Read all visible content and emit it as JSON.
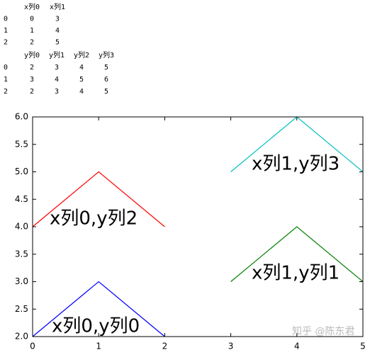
{
  "tables": [
    {
      "header": [
        "x列0",
        "x列1"
      ],
      "index": [
        0,
        1,
        2
      ],
      "rows": [
        [
          0,
          3
        ],
        [
          1,
          4
        ],
        [
          2,
          5
        ]
      ]
    },
    {
      "header": [
        "y列0",
        "y列1",
        "y列2",
        "y列3"
      ],
      "index": [
        0,
        1,
        2
      ],
      "rows": [
        [
          2,
          3,
          4,
          5
        ],
        [
          3,
          4,
          5,
          6
        ],
        [
          2,
          3,
          4,
          5
        ]
      ]
    }
  ],
  "chart_data": {
    "type": "line",
    "series": [
      {
        "color": "#0000ff",
        "x": [
          0,
          1,
          2
        ],
        "values": [
          2,
          3,
          2
        ],
        "annotation": "x列0,y列0"
      },
      {
        "color": "#ff0000",
        "x": [
          0,
          1,
          2
        ],
        "values": [
          4,
          5,
          4
        ],
        "annotation": "x列0,y列2"
      },
      {
        "color": "#008000",
        "x": [
          3,
          4,
          5
        ],
        "values": [
          3,
          4,
          3
        ],
        "annotation": "x列1,y列1"
      },
      {
        "color": "#00bfbf",
        "x": [
          3,
          4,
          5
        ],
        "values": [
          5,
          6,
          5
        ],
        "annotation": "x列1,y列3"
      }
    ],
    "xlim": [
      0,
      5
    ],
    "xticks": [
      0,
      1,
      2,
      3,
      4,
      5
    ],
    "ylim": [
      2,
      6
    ],
    "yticks": [
      {
        "value": 2,
        "label": "2.0"
      },
      2.5,
      {
        "value": 3,
        "label": "3.0"
      },
      3.5,
      {
        "value": 4,
        "label": "4.0"
      },
      4.5,
      {
        "value": 5,
        "label": "5.0"
      },
      5.5,
      {
        "value": 6,
        "label": "6.0"
      }
    ],
    "watermark": "知乎 @陈东君"
  }
}
